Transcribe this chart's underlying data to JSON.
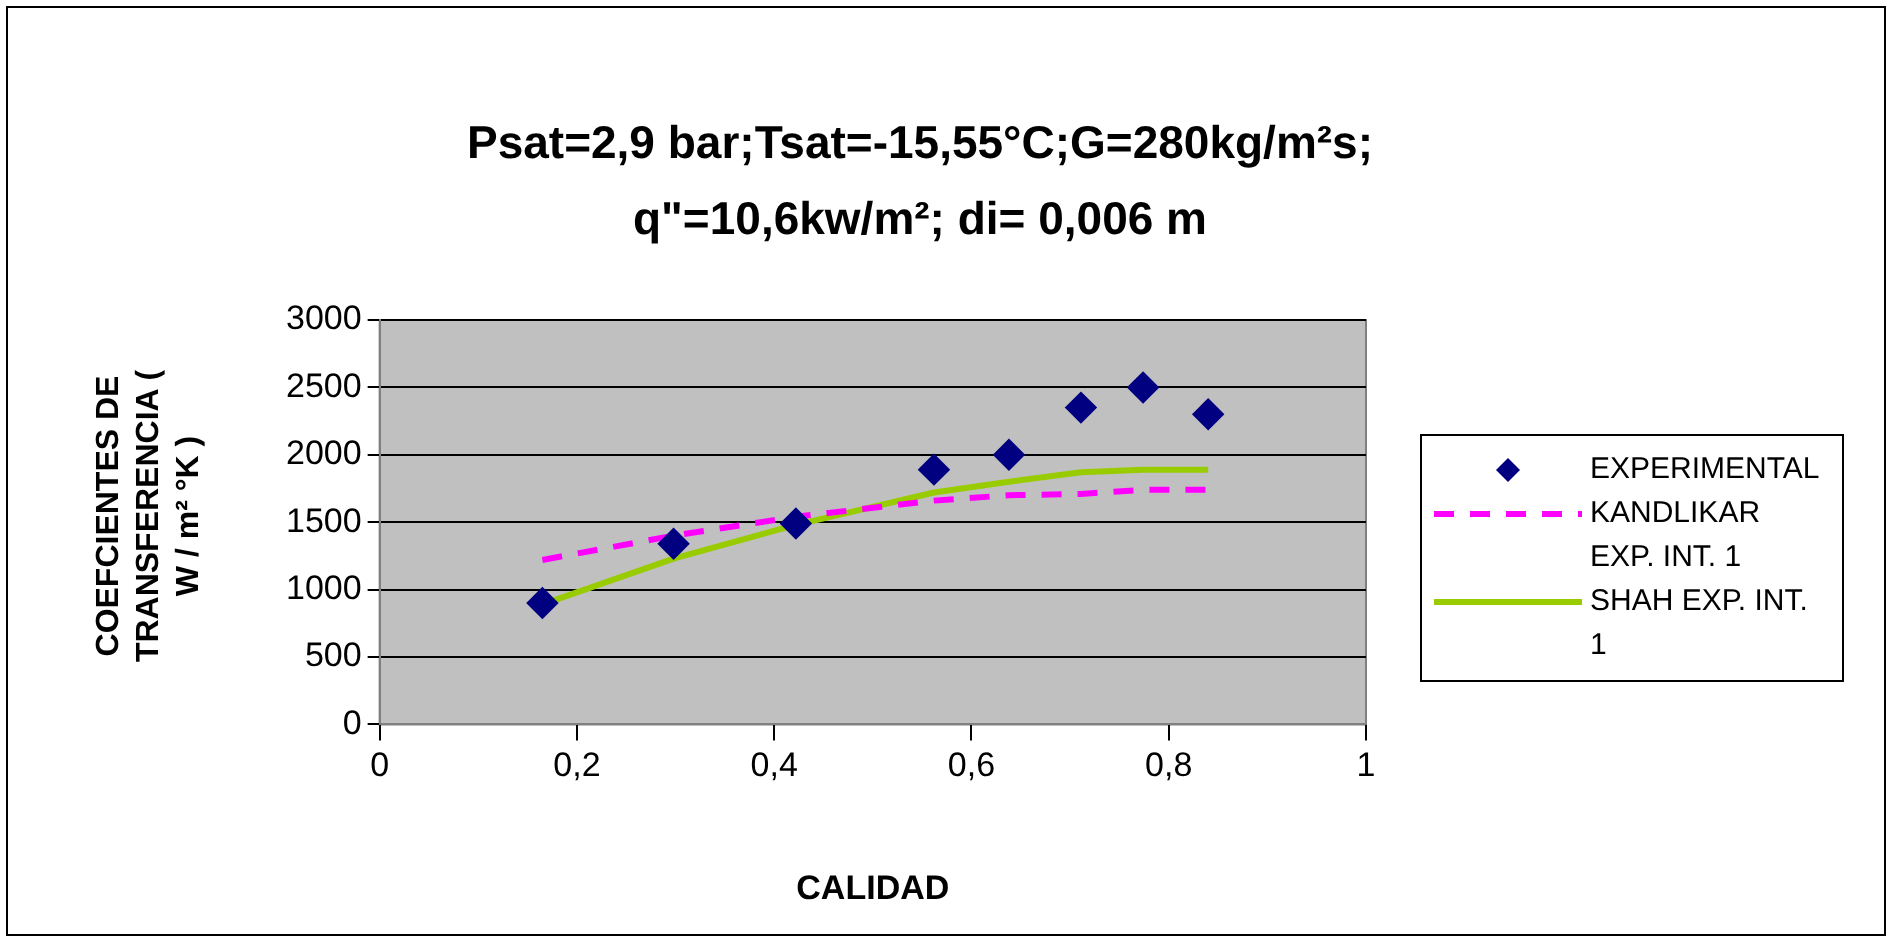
{
  "chart_data": {
    "type": "scatter",
    "title": "Psat=2,9 bar;Tsat=-15,55°C;G=280kg/m²s; q\"=10,6kw/m²; di= 0,006 m",
    "xlabel": "CALIDAD",
    "ylabel": "COEFCIENTES DE TRANSFERENCIA ( W / m² °K )",
    "xlim": [
      0,
      1
    ],
    "xticks": [
      0,
      {
        "value": 0.2,
        "label": "0,2"
      },
      {
        "value": 0.4,
        "label": "0,4"
      },
      {
        "value": 0.6,
        "label": "0,6"
      },
      {
        "value": 0.8,
        "label": "0,8"
      },
      1
    ],
    "ylim": [
      0,
      3000
    ],
    "yticks": [
      0,
      500,
      1000,
      1500,
      2000,
      2500,
      3000
    ],
    "grid": "y",
    "legend": "right",
    "series": [
      {
        "name": "EXPERIMENTAL",
        "marker": "diamond",
        "color": "#000080",
        "x": [
          0.165,
          0.298,
          0.422,
          0.562,
          0.638,
          0.711,
          0.774,
          0.84
        ],
        "values": [
          900,
          1340,
          1490,
          1890,
          2000,
          2350,
          2500,
          2300
        ]
      },
      {
        "name": "KANDLIKAR EXP. INT. 1",
        "type": "line",
        "marker": "none",
        "line_style": "dashed",
        "color": "#ff00ff",
        "x": [
          0.165,
          0.298,
          0.422,
          0.562,
          0.638,
          0.711,
          0.774,
          0.84
        ],
        "values": [
          1220,
          1400,
          1540,
          1660,
          1700,
          1710,
          1740,
          1740
        ]
      },
      {
        "name": "SHAH EXP. INT. 1",
        "type": "line",
        "marker": "none",
        "line_style": "solid",
        "color": "#99cc00",
        "x": [
          0.165,
          0.298,
          0.422,
          0.562,
          0.638,
          0.711,
          0.774,
          0.84
        ],
        "values": [
          890,
          1230,
          1480,
          1720,
          1800,
          1870,
          1890,
          1890
        ]
      }
    ]
  }
}
